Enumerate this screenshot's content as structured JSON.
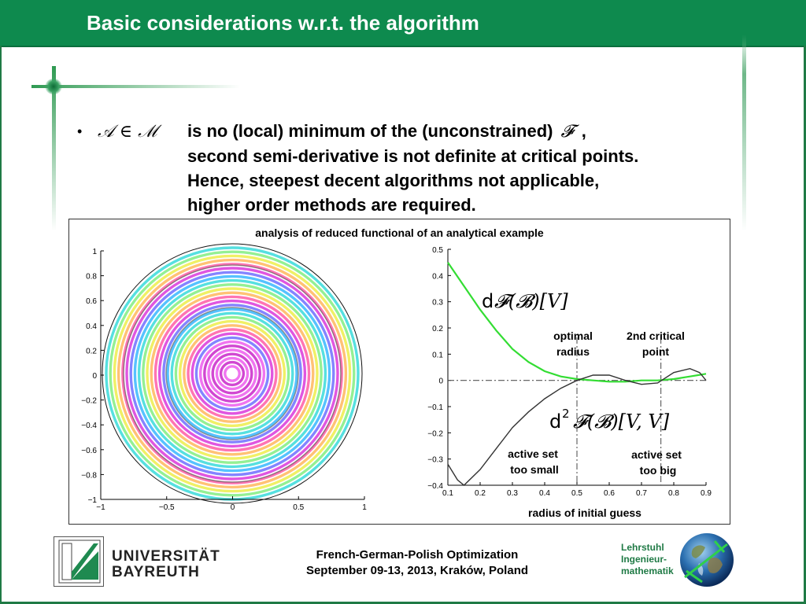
{
  "slide": {
    "title": "Basic considerations w.r.t. the algorithm",
    "bullet": {
      "symbol": "•",
      "math_set": "𝒜 ∈ ℳ",
      "line1_text": "is no (local) minimum of the (unconstrained)",
      "line1_math": "𝓕",
      "line1_tail": ",",
      "line2": "second semi-derivative is not definite at critical points.",
      "line3": "Hence, steepest decent algorithms not applicable,",
      "line4": "higher order methods are required."
    }
  },
  "figure": {
    "caption": "analysis of reduced functional of an analytical example",
    "left_plot": {
      "x_ticks": [
        "−1",
        "−0.5",
        "0",
        "0.5",
        "1"
      ],
      "y_ticks": [
        "1",
        "0.8",
        "0.6",
        "0.4",
        "0.2",
        "0",
        "−0.2",
        "−0.4",
        "−0.6",
        "−0.8",
        "−1"
      ],
      "description_rings": "concentric colored rings"
    },
    "right_plot": {
      "xlabel": "radius of initial guess",
      "x_ticks": [
        "0.1",
        "0.2",
        "0.3",
        "0.4",
        "0.5",
        "0.6",
        "0.7",
        "0.8",
        "0.9"
      ],
      "y_ticks": [
        "0.5",
        "0.4",
        "0.3",
        "0.2",
        "0.1",
        "0",
        "−0.1",
        "−0.2",
        "−0.3",
        "−0.4"
      ],
      "label_dF_prefix": "d",
      "label_dF_math": "𝓕(𝓑)[V]",
      "label_d2F_prefix": "d",
      "label_d2F_sup": "2",
      "label_d2F_math": "𝓕(𝓑)[V, V]",
      "annot_optimal_1": "optimal",
      "annot_optimal_2": "radius",
      "annot_critical_1": "2nd critical",
      "annot_critical_2": "point",
      "annot_small_1": "active set",
      "annot_small_2": "too small",
      "annot_big_1": "active set",
      "annot_big_2": "too big"
    }
  },
  "chart_data": {
    "type": "line",
    "xlabel": "radius of initial guess",
    "ylabel": "",
    "xlim": [
      0.1,
      0.9
    ],
    "ylim": [
      -0.4,
      0.5
    ],
    "grid": false,
    "series": [
      {
        "name": "d𝓕(𝓑)[V]",
        "color": "#33dd33",
        "x": [
          0.1,
          0.15,
          0.2,
          0.25,
          0.3,
          0.35,
          0.4,
          0.45,
          0.5,
          0.55,
          0.6,
          0.65,
          0.7,
          0.75,
          0.8,
          0.85,
          0.9
        ],
        "y": [
          0.45,
          0.36,
          0.27,
          0.19,
          0.12,
          0.07,
          0.035,
          0.015,
          0.005,
          0.0,
          -0.005,
          -0.005,
          0.0,
          0.0,
          0.005,
          0.015,
          0.025
        ]
      },
      {
        "name": "d²𝓕(𝓑)[V, V]",
        "color": "#333333",
        "x": [
          0.1,
          0.13,
          0.15,
          0.2,
          0.25,
          0.3,
          0.35,
          0.4,
          0.45,
          0.5,
          0.55,
          0.6,
          0.65,
          0.7,
          0.75,
          0.8,
          0.85,
          0.88,
          0.9
        ],
        "y": [
          -0.32,
          -0.38,
          -0.4,
          -0.34,
          -0.26,
          -0.18,
          -0.12,
          -0.07,
          -0.03,
          0.0,
          0.02,
          0.02,
          0.0,
          -0.015,
          -0.01,
          0.03,
          0.045,
          0.03,
          0.0
        ]
      }
    ],
    "reference_lines": {
      "horizontal_y": 0,
      "vertical_x": [
        0.5,
        0.76
      ]
    }
  },
  "footer": {
    "conference": "French-German-Polish Optimization",
    "date_place": "September 09-13, 2013, Kraków, Poland",
    "uni_line1": "UNIVERSITÄT",
    "uni_line2": "BAYREUTH",
    "lehrstuhl_1": "Lehrstuhl",
    "lehrstuhl_2": "Ingenieur-",
    "lehrstuhl_3": "mathematik"
  },
  "colors": {
    "title_bar": "#0e8a4e",
    "frame": "#1f7a45",
    "green_curve": "#33dd33",
    "black_curve": "#333333"
  }
}
